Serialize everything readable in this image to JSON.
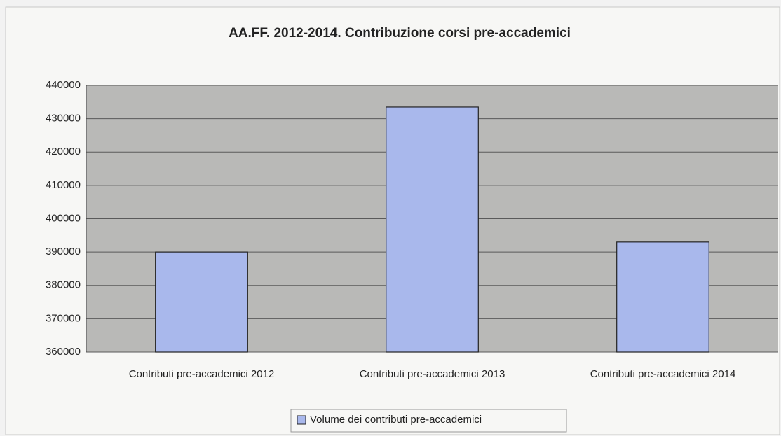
{
  "chart_data": {
    "type": "bar",
    "title": "AA.FF. 2012-2014. Contribuzione corsi pre-accademici",
    "categories": [
      "Contributi pre-accademici 2012",
      "Contributi pre-accademici 2013",
      "Contributi pre-accademici 2014"
    ],
    "series": [
      {
        "name": "Volume dei contributi pre-accademici",
        "color": "#a9b8ec",
        "values": [
          390000,
          433500,
          393000
        ]
      }
    ],
    "ylim": [
      360000,
      440000
    ],
    "yticks": [
      360000,
      370000,
      380000,
      390000,
      400000,
      410000,
      420000,
      430000,
      440000
    ],
    "grid": true,
    "legend": "bottom"
  }
}
